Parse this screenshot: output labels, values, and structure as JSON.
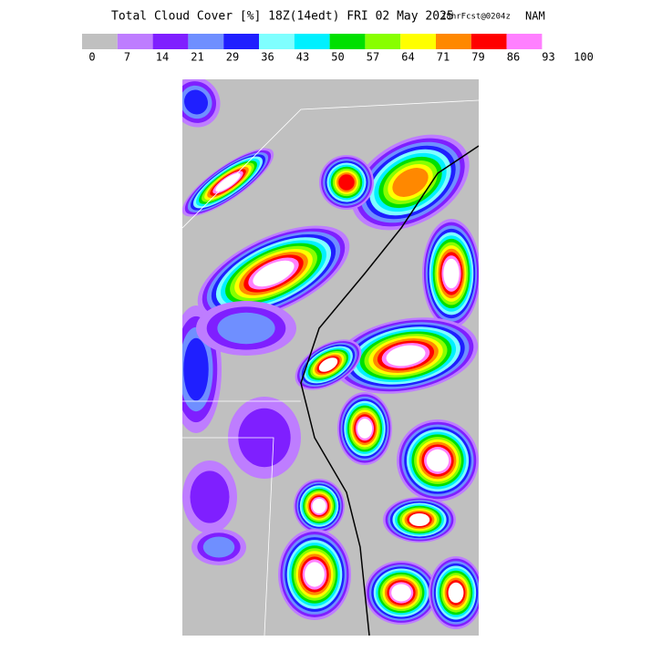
{
  "header": {
    "title": "Total Cloud Cover [%] 18Z(14edt) FRI 02 May 2025",
    "forecast": "18hrFcst@0204z",
    "model": "NAM"
  },
  "colorbar": {
    "colors": [
      "#c0c0c0",
      "#be7dff",
      "#7f1fff",
      "#6f8fff",
      "#1f1fff",
      "#7fffff",
      "#00f0ff",
      "#00e000",
      "#88ff00",
      "#ffff00",
      "#ff8800",
      "#ff0000",
      "#ff80ff"
    ],
    "labels": [
      "0",
      "7",
      "14",
      "21",
      "29",
      "36",
      "43",
      "50",
      "57",
      "64",
      "71",
      "79",
      "86",
      "93",
      "100"
    ]
  }
}
